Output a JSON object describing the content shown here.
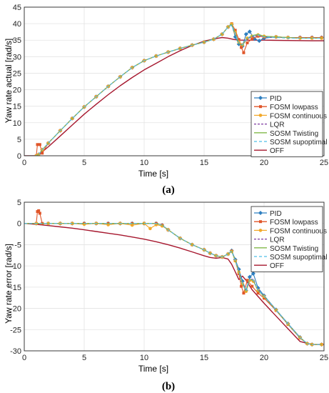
{
  "colors": {
    "PID": "#2e7fc0",
    "FOSM lowpass": "#e0562a",
    "FOSM continuous": "#f2a829",
    "LQR": "#7e3aa1",
    "SOSM Twisting": "#82b94a",
    "SOSM supoptimal": "#4fbfe8",
    "OFF": "#a6172e"
  },
  "chart_data": [
    {
      "type": "line",
      "caption": "(a)",
      "xlabel": "Time [s]",
      "ylabel": "Yaw rate actual [rad/s]",
      "xlim": [
        0,
        25
      ],
      "ylim": [
        0,
        45
      ],
      "xticks": [
        "0",
        "5",
        "10",
        "15",
        "20",
        "25"
      ],
      "yticks": [
        "0",
        "5",
        "10",
        "15",
        "20",
        "25",
        "30",
        "35",
        "40",
        "45"
      ],
      "grid": true,
      "legend_position": "bottom-right",
      "series": [
        {
          "name": "PID",
          "marker": "diamond",
          "x": [
            0,
            1.0,
            1.2,
            1.5,
            2,
            3,
            4,
            5,
            6,
            7,
            8,
            9,
            10,
            11,
            12,
            13,
            14,
            15,
            15.8,
            16.5,
            17,
            17.3,
            17.6,
            17.9,
            18.2,
            18.5,
            18.8,
            19.2,
            19.6,
            20,
            21,
            22,
            23,
            24,
            24.8
          ],
          "y": [
            0,
            0,
            0.4,
            1.8,
            3.8,
            7.6,
            11.3,
            14.8,
            17.9,
            21.0,
            23.9,
            26.7,
            28.8,
            30.2,
            31.4,
            32.5,
            33.5,
            34.4,
            35.3,
            36.8,
            39.0,
            39.8,
            36.0,
            33.8,
            33.2,
            36.8,
            37.6,
            35.4,
            34.8,
            35.6,
            36.0,
            35.8,
            35.8,
            35.8,
            35.8
          ]
        },
        {
          "name": "FOSM lowpass",
          "marker": "square",
          "x": [
            0,
            1.0,
            1.1,
            1.3,
            1.5,
            2,
            3,
            4,
            5,
            6,
            7,
            8,
            9,
            10,
            11,
            12,
            13,
            14,
            15,
            15.8,
            16.5,
            17,
            17.3,
            17.6,
            17.9,
            18.1,
            18.3,
            18.6,
            19,
            19.5,
            20,
            21,
            22,
            23,
            24,
            24.8
          ],
          "y": [
            0,
            0,
            3.4,
            3.4,
            0.8,
            3.8,
            7.6,
            11.3,
            14.8,
            17.9,
            21.0,
            23.9,
            26.7,
            28.8,
            30.2,
            31.4,
            32.5,
            33.5,
            34.4,
            35.3,
            36.8,
            39.0,
            40.0,
            38.0,
            35.2,
            32.8,
            31.2,
            34.2,
            35.4,
            36.2,
            36.0,
            36.0,
            35.8,
            35.8,
            35.8,
            35.8
          ]
        },
        {
          "name": "FOSM continuous",
          "marker": "circle",
          "x": [
            0,
            1.0,
            1.2,
            1.5,
            2,
            3,
            4,
            5,
            6,
            7,
            8,
            9,
            10,
            11,
            12,
            13,
            14,
            15,
            15.8,
            16.5,
            17,
            17.3,
            17.6,
            17.9,
            18.2,
            18.6,
            19,
            19.5,
            20,
            21,
            22,
            23,
            24,
            24.8
          ],
          "y": [
            0,
            0,
            0.4,
            1.8,
            3.8,
            7.6,
            11.3,
            14.8,
            17.9,
            21.0,
            23.9,
            26.7,
            28.8,
            30.2,
            31.4,
            32.5,
            33.5,
            34.4,
            35.3,
            36.8,
            39.0,
            39.9,
            37.4,
            34.4,
            33.6,
            35.6,
            36.2,
            36.6,
            36.2,
            36.0,
            35.8,
            35.6,
            35.6,
            35.6
          ]
        },
        {
          "name": "LQR",
          "marker": "none",
          "dash": "3,2",
          "x": [
            0,
            1.0,
            1.2,
            1.5,
            2,
            3,
            4,
            5,
            6,
            7,
            8,
            9,
            10,
            11,
            12,
            13,
            14,
            15,
            15.8,
            16.5,
            17,
            17.3,
            17.6,
            17.9,
            18.2,
            18.6,
            19,
            19.5,
            20,
            21,
            22,
            23,
            24,
            24.8
          ],
          "y": [
            0,
            0,
            0.4,
            1.8,
            3.8,
            7.6,
            11.3,
            14.8,
            17.9,
            21.0,
            23.9,
            26.7,
            28.8,
            30.2,
            31.4,
            32.5,
            33.5,
            34.4,
            35.3,
            36.8,
            39.0,
            39.7,
            37.2,
            34.2,
            33.6,
            35.4,
            36.0,
            36.4,
            36.0,
            35.8,
            35.8,
            35.6,
            35.6,
            35.6
          ]
        },
        {
          "name": "SOSM Twisting",
          "marker": "none",
          "x": [
            0,
            1.0,
            1.2,
            1.5,
            2,
            3,
            4,
            5,
            6,
            7,
            8,
            9,
            10,
            11,
            12,
            13,
            14,
            15,
            15.8,
            16.5,
            17,
            17.3,
            17.6,
            17.9,
            18.2,
            18.6,
            19,
            19.5,
            20,
            21,
            22,
            23,
            24,
            24.8
          ],
          "y": [
            0,
            0,
            0.4,
            1.8,
            3.8,
            7.6,
            11.3,
            14.8,
            17.9,
            21.0,
            23.9,
            26.7,
            28.8,
            30.2,
            31.4,
            32.5,
            33.5,
            34.4,
            35.3,
            36.8,
            39.0,
            39.8,
            37.0,
            34.0,
            33.4,
            35.6,
            36.4,
            36.8,
            36.2,
            36.0,
            35.8,
            35.6,
            35.6,
            35.6
          ]
        },
        {
          "name": "SOSM supoptimal",
          "marker": "none",
          "dash": "4,3",
          "x": [
            0,
            1.0,
            1.2,
            1.5,
            2,
            3,
            4,
            5,
            6,
            7,
            8,
            9,
            10,
            11,
            12,
            13,
            14,
            15,
            15.8,
            16.5,
            17,
            17.3,
            17.6,
            17.9,
            18.2,
            18.6,
            19,
            19.5,
            20,
            21,
            22,
            23,
            24,
            24.8
          ],
          "y": [
            0,
            0,
            0.4,
            1.8,
            3.8,
            7.6,
            11.3,
            14.8,
            17.9,
            21.0,
            23.9,
            26.7,
            28.8,
            30.2,
            31.4,
            32.5,
            33.5,
            34.4,
            35.3,
            36.8,
            39.0,
            39.6,
            37.0,
            34.2,
            33.6,
            35.6,
            36.2,
            36.6,
            36.0,
            35.8,
            35.6,
            35.6,
            35.6,
            35.6
          ]
        },
        {
          "name": "OFF",
          "marker": "none",
          "x": [
            0,
            1.0,
            1.2,
            2,
            3,
            4,
            5,
            6,
            7,
            8,
            9,
            10,
            11,
            12,
            13,
            14,
            15,
            16,
            16.5,
            17,
            17.5,
            18,
            19,
            20,
            22,
            24,
            25
          ],
          "y": [
            0,
            0,
            0.3,
            2.7,
            6.0,
            9.3,
            12.6,
            15.6,
            18.5,
            21.2,
            23.7,
            26.0,
            28.0,
            30.0,
            31.8,
            33.4,
            34.7,
            35.5,
            35.8,
            35.6,
            35.2,
            35.0,
            35.0,
            35.0,
            34.9,
            34.8,
            34.8
          ]
        }
      ]
    },
    {
      "type": "line",
      "caption": "(b)",
      "xlabel": "Time [s]",
      "ylabel": "Yaw rate error [rad/s]",
      "xlim": [
        0,
        25
      ],
      "ylim": [
        -30,
        5
      ],
      "xticks": [
        "0",
        "5",
        "10",
        "15",
        "20",
        "25"
      ],
      "yticks": [
        "5",
        "0",
        "-5",
        "-10",
        "-15",
        "-20",
        "-25",
        "-30"
      ],
      "grid": true,
      "legend_position": "top-right",
      "series": [
        {
          "name": "PID",
          "marker": "diamond",
          "x": [
            0,
            1,
            2,
            3,
            4,
            5,
            6,
            7,
            8,
            9,
            10,
            11,
            11.5,
            12,
            13,
            14,
            15,
            15.5,
            16,
            16.5,
            17,
            17.3,
            17.6,
            17.9,
            18.2,
            18.5,
            18.8,
            19.1,
            19.5,
            20,
            21,
            22,
            23,
            23.6,
            24,
            24.8
          ],
          "y": [
            0,
            0,
            0,
            0,
            0,
            0,
            0,
            0,
            0,
            0,
            0,
            0,
            -0.4,
            -1.5,
            -3.5,
            -5.0,
            -6.2,
            -7.0,
            -7.6,
            -7.9,
            -7.2,
            -6.4,
            -8.5,
            -10.8,
            -13.6,
            -15.8,
            -12.6,
            -11.8,
            -15.2,
            -17.0,
            -20.3,
            -23.6,
            -26.8,
            -28.3,
            -28.5,
            -28.5
          ]
        },
        {
          "name": "FOSM lowpass",
          "marker": "square",
          "x": [
            0,
            1,
            1.1,
            1.2,
            1.3,
            1.5,
            2,
            3,
            4,
            5,
            6,
            7,
            8,
            9,
            10,
            11,
            11.5,
            12,
            13,
            14,
            15,
            15.5,
            16,
            16.5,
            17,
            17.3,
            17.6,
            17.9,
            18.1,
            18.3,
            18.6,
            19,
            19.5,
            20,
            21,
            22,
            23,
            23.6,
            24,
            24.8
          ],
          "y": [
            0,
            0,
            2.8,
            3.0,
            2.4,
            0,
            0,
            0,
            0,
            0,
            0,
            0,
            0,
            0,
            0,
            0,
            -0.4,
            -1.5,
            -3.5,
            -5.0,
            -6.2,
            -7.0,
            -7.6,
            -7.9,
            -7.2,
            -6.5,
            -8.8,
            -11.8,
            -14.8,
            -16.4,
            -13.4,
            -14.8,
            -16.4,
            -17.6,
            -20.5,
            -23.8,
            -27.0,
            -28.3,
            -28.5,
            -28.5
          ]
        },
        {
          "name": "FOSM continuous",
          "marker": "circle",
          "x": [
            0,
            1,
            2,
            3,
            4,
            5,
            6,
            7,
            8,
            9,
            10,
            10.5,
            11,
            11.5,
            12,
            13,
            14,
            15,
            15.5,
            16,
            16.5,
            17,
            17.3,
            17.6,
            17.9,
            18.2,
            18.5,
            18.8,
            19.1,
            19.5,
            20,
            21,
            22,
            23,
            23.6,
            24,
            24.8
          ],
          "y": [
            0,
            0,
            0,
            0,
            0,
            -0.2,
            0,
            -0.3,
            0,
            -0.4,
            0,
            -1.2,
            -0.3,
            -0.6,
            -1.5,
            -3.5,
            -5.0,
            -6.2,
            -7.0,
            -7.6,
            -7.9,
            -7.2,
            -6.6,
            -8.8,
            -11.5,
            -14.2,
            -16.0,
            -13.4,
            -13.6,
            -15.8,
            -17.2,
            -20.4,
            -23.7,
            -26.9,
            -28.3,
            -28.5,
            -28.5
          ]
        },
        {
          "name": "LQR",
          "marker": "none",
          "dash": "3,2",
          "x": [
            0,
            1,
            2,
            3,
            4,
            5,
            6,
            7,
            8,
            9,
            10,
            11,
            11.5,
            12,
            13,
            14,
            15,
            15.5,
            16,
            16.5,
            17,
            17.3,
            17.6,
            17.9,
            18.2,
            18.5,
            18.8,
            19.1,
            19.5,
            20,
            21,
            22,
            23,
            23.6,
            24,
            24.8
          ],
          "y": [
            0,
            0,
            0,
            0,
            0,
            0,
            0,
            0,
            0,
            0,
            0,
            0,
            -0.4,
            -1.5,
            -3.5,
            -5.0,
            -6.2,
            -7.0,
            -7.6,
            -7.9,
            -7.2,
            -6.5,
            -8.6,
            -11.2,
            -14.0,
            -15.9,
            -13.0,
            -13.2,
            -15.6,
            -17.1,
            -20.4,
            -23.7,
            -26.9,
            -28.3,
            -28.5,
            -28.5
          ]
        },
        {
          "name": "SOSM Twisting",
          "marker": "none",
          "x": [
            0,
            1,
            2,
            3,
            4,
            5,
            6,
            7,
            8,
            9,
            10,
            11,
            11.5,
            12,
            13,
            14,
            15,
            15.5,
            16,
            16.5,
            17,
            17.3,
            17.6,
            17.9,
            18.2,
            18.5,
            18.8,
            19.1,
            19.5,
            20,
            21,
            22,
            23,
            23.6,
            24,
            24.8
          ],
          "y": [
            0,
            0,
            0,
            0,
            0,
            0,
            0,
            0,
            0,
            0,
            0,
            0,
            -0.4,
            -1.5,
            -3.5,
            -5.0,
            -6.2,
            -7.0,
            -7.6,
            -7.9,
            -7.2,
            -6.5,
            -8.7,
            -11.4,
            -14.2,
            -16.0,
            -13.2,
            -13.4,
            -15.8,
            -17.2,
            -20.4,
            -23.7,
            -26.9,
            -28.3,
            -28.5,
            -28.5
          ]
        },
        {
          "name": "SOSM supoptimal",
          "marker": "none",
          "dash": "4,3",
          "x": [
            0,
            1,
            2,
            3,
            4,
            5,
            6,
            7,
            8,
            9,
            10,
            11,
            11.5,
            12,
            13,
            14,
            15,
            15.5,
            16,
            16.5,
            17,
            17.3,
            17.6,
            17.9,
            18.2,
            18.5,
            18.8,
            19.1,
            19.5,
            20,
            21,
            22,
            23,
            23.6,
            24,
            24.8
          ],
          "y": [
            0,
            0,
            0,
            0,
            0,
            0,
            0,
            0,
            0,
            0,
            0,
            0,
            -0.4,
            -1.5,
            -3.5,
            -5.0,
            -6.2,
            -7.0,
            -7.6,
            -7.9,
            -7.2,
            -6.6,
            -8.7,
            -11.3,
            -14.1,
            -15.9,
            -13.1,
            -13.3,
            -15.7,
            -17.1,
            -20.4,
            -23.7,
            -26.9,
            -28.3,
            -28.5,
            -28.5
          ]
        },
        {
          "name": "OFF",
          "marker": "none",
          "x": [
            0,
            1,
            2,
            3,
            4,
            5,
            6,
            7,
            8,
            9,
            10,
            11,
            12,
            13,
            14,
            15,
            15.5,
            16,
            16.5,
            17,
            17.3,
            17.6,
            17.9,
            18.2,
            18.5,
            19,
            20,
            21,
            22,
            23,
            24,
            25
          ],
          "y": [
            0,
            -0.2,
            -0.5,
            -0.8,
            -1.1,
            -1.5,
            -1.9,
            -2.3,
            -2.7,
            -3.2,
            -3.7,
            -4.3,
            -5.0,
            -5.8,
            -6.7,
            -7.6,
            -8.0,
            -8.2,
            -8.0,
            -8.4,
            -9.6,
            -11.4,
            -13.2,
            -12.4,
            -13.4,
            -15.6,
            -18.8,
            -21.8,
            -24.8,
            -27.8,
            -28.5,
            -28.5
          ]
        }
      ]
    }
  ]
}
